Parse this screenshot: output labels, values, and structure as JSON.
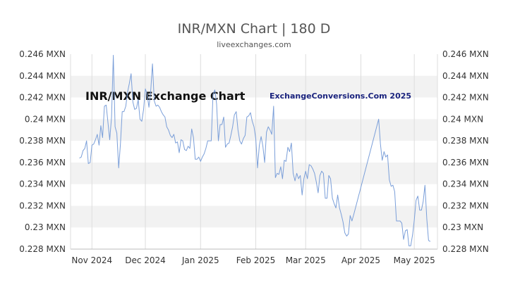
{
  "chart_data": {
    "type": "line",
    "title": "INR/MXN Chart | 180 D",
    "subtitle": "liveexchanges.com",
    "watermark_left": "INR/MXN Exchange Chart",
    "watermark_right": "ExchangeConversions.Com 2025",
    "xlabel": "",
    "ylabel": "",
    "ylim": [
      0.228,
      0.246
    ],
    "y_ticks": [
      {
        "value": 0.228,
        "label": "0.228 MXN"
      },
      {
        "value": 0.23,
        "label": "0.23 MXN"
      },
      {
        "value": 0.232,
        "label": "0.232 MXN"
      },
      {
        "value": 0.234,
        "label": "0.234 MXN"
      },
      {
        "value": 0.236,
        "label": "0.236 MXN"
      },
      {
        "value": 0.238,
        "label": "0.238 MXN"
      },
      {
        "value": 0.24,
        "label": "0.24 MXN"
      },
      {
        "value": 0.242,
        "label": "0.242 MXN"
      },
      {
        "value": 0.244,
        "label": "0.244 MXN"
      },
      {
        "value": 0.246,
        "label": "0.246 MXN"
      }
    ],
    "xlim": [
      "2024-10-20",
      "2025-05-14"
    ],
    "x_ticks": [
      {
        "date": "2024-11-01",
        "label": "Nov 2024"
      },
      {
        "date": "2024-12-01",
        "label": "Dec 2024"
      },
      {
        "date": "2025-01-01",
        "label": "Jan 2025"
      },
      {
        "date": "2025-02-01",
        "label": "Feb 2025"
      },
      {
        "date": "2025-03-01",
        "label": "Mar 2025"
      },
      {
        "date": "2025-04-01",
        "label": "Apr 2025"
      },
      {
        "date": "2025-05-01",
        "label": "May 2025"
      }
    ],
    "grid": "alternating-horizontal-bands",
    "line_color": "#7b9fd9",
    "band_color": "#f2f2f2",
    "series": [
      {
        "name": "",
        "points": [
          [
            "2024-10-25",
            0.2364
          ],
          [
            "2024-10-26",
            0.2365
          ],
          [
            "2024-10-27",
            0.2371
          ],
          [
            "2024-10-28",
            0.2373
          ],
          [
            "2024-10-29",
            0.238
          ],
          [
            "2024-10-30",
            0.2359
          ],
          [
            "2024-10-31",
            0.236
          ],
          [
            "2024-11-01",
            0.2376
          ],
          [
            "2024-11-02",
            0.2377
          ],
          [
            "2024-11-03",
            0.2381
          ],
          [
            "2024-11-04",
            0.2386
          ],
          [
            "2024-11-05",
            0.2376
          ],
          [
            "2024-11-06",
            0.2394
          ],
          [
            "2024-11-07",
            0.2383
          ],
          [
            "2024-11-08",
            0.2412
          ],
          [
            "2024-11-09",
            0.2413
          ],
          [
            "2024-11-10",
            0.2397
          ],
          [
            "2024-11-11",
            0.2381
          ],
          [
            "2024-11-12",
            0.2402
          ],
          [
            "2024-11-13",
            0.2459
          ],
          [
            "2024-11-14",
            0.2393
          ],
          [
            "2024-11-15",
            0.2387
          ],
          [
            "2024-11-16",
            0.2355
          ],
          [
            "2024-11-17",
            0.2377
          ],
          [
            "2024-11-18",
            0.2407
          ],
          [
            "2024-11-19",
            0.2407
          ],
          [
            "2024-11-20",
            0.2412
          ],
          [
            "2024-11-21",
            0.2425
          ],
          [
            "2024-11-22",
            0.2433
          ],
          [
            "2024-11-23",
            0.2442
          ],
          [
            "2024-11-24",
            0.2416
          ],
          [
            "2024-11-25",
            0.2409
          ],
          [
            "2024-11-26",
            0.241
          ],
          [
            "2024-11-27",
            0.2418
          ],
          [
            "2024-11-28",
            0.24
          ],
          [
            "2024-11-29",
            0.2398
          ],
          [
            "2024-11-30",
            0.2409
          ],
          [
            "2024-12-01",
            0.2428
          ],
          [
            "2024-12-02",
            0.2423
          ],
          [
            "2024-12-03",
            0.2411
          ],
          [
            "2024-12-04",
            0.2426
          ],
          [
            "2024-12-05",
            0.2451
          ],
          [
            "2024-12-06",
            0.2417
          ],
          [
            "2024-12-07",
            0.2412
          ],
          [
            "2024-12-08",
            0.2413
          ],
          [
            "2024-12-09",
            0.2411
          ],
          [
            "2024-12-10",
            0.2407
          ],
          [
            "2024-12-11",
            0.2404
          ],
          [
            "2024-12-12",
            0.2402
          ],
          [
            "2024-12-13",
            0.2393
          ],
          [
            "2024-12-14",
            0.239
          ],
          [
            "2024-12-15",
            0.2385
          ],
          [
            "2024-12-16",
            0.2383
          ],
          [
            "2024-12-17",
            0.2386
          ],
          [
            "2024-12-18",
            0.2378
          ],
          [
            "2024-12-19",
            0.2379
          ],
          [
            "2024-12-20",
            0.2369
          ],
          [
            "2024-12-21",
            0.2381
          ],
          [
            "2024-12-22",
            0.238
          ],
          [
            "2024-12-23",
            0.2372
          ],
          [
            "2024-12-24",
            0.2371
          ],
          [
            "2024-12-25",
            0.2375
          ],
          [
            "2024-12-26",
            0.2373
          ],
          [
            "2024-12-27",
            0.2391
          ],
          [
            "2024-12-28",
            0.2383
          ],
          [
            "2024-12-29",
            0.2363
          ],
          [
            "2024-12-30",
            0.2363
          ],
          [
            "2024-12-31",
            0.2365
          ],
          [
            "2025-01-01",
            0.2361
          ],
          [
            "2025-01-02",
            0.2365
          ],
          [
            "2025-01-03",
            0.2368
          ],
          [
            "2025-01-04",
            0.2373
          ],
          [
            "2025-01-05",
            0.238
          ],
          [
            "2025-01-06",
            0.238
          ],
          [
            "2025-01-07",
            0.238
          ],
          [
            "2025-01-08",
            0.2423
          ],
          [
            "2025-01-09",
            0.2427
          ],
          [
            "2025-01-10",
            0.2414
          ],
          [
            "2025-01-11",
            0.238
          ],
          [
            "2025-01-12",
            0.2395
          ],
          [
            "2025-01-13",
            0.2395
          ],
          [
            "2025-01-14",
            0.2402
          ],
          [
            "2025-01-15",
            0.2374
          ],
          [
            "2025-01-16",
            0.2377
          ],
          [
            "2025-01-17",
            0.2378
          ],
          [
            "2025-01-18",
            0.2385
          ],
          [
            "2025-01-19",
            0.2393
          ],
          [
            "2025-01-20",
            0.2404
          ],
          [
            "2025-01-21",
            0.2407
          ],
          [
            "2025-01-22",
            0.239
          ],
          [
            "2025-01-23",
            0.238
          ],
          [
            "2025-01-24",
            0.2377
          ],
          [
            "2025-01-25",
            0.2382
          ],
          [
            "2025-01-26",
            0.2385
          ],
          [
            "2025-01-27",
            0.2402
          ],
          [
            "2025-01-28",
            0.2403
          ],
          [
            "2025-01-29",
            0.2406
          ],
          [
            "2025-01-30",
            0.2398
          ],
          [
            "2025-01-31",
            0.2393
          ],
          [
            "2025-02-01",
            0.2382
          ],
          [
            "2025-02-02",
            0.2355
          ],
          [
            "2025-02-03",
            0.2376
          ],
          [
            "2025-02-04",
            0.2384
          ],
          [
            "2025-02-05",
            0.2375
          ],
          [
            "2025-02-06",
            0.236
          ],
          [
            "2025-02-07",
            0.2388
          ],
          [
            "2025-02-08",
            0.2393
          ],
          [
            "2025-02-09",
            0.239
          ],
          [
            "2025-02-10",
            0.2386
          ],
          [
            "2025-02-11",
            0.2412
          ],
          [
            "2025-02-12",
            0.2346
          ],
          [
            "2025-02-13",
            0.235
          ],
          [
            "2025-02-14",
            0.2349
          ],
          [
            "2025-02-15",
            0.2356
          ],
          [
            "2025-02-16",
            0.2345
          ],
          [
            "2025-02-17",
            0.2362
          ],
          [
            "2025-02-18",
            0.2361
          ],
          [
            "2025-02-19",
            0.2374
          ],
          [
            "2025-02-20",
            0.237
          ],
          [
            "2025-02-21",
            0.2378
          ],
          [
            "2025-02-22",
            0.235
          ],
          [
            "2025-02-23",
            0.2343
          ],
          [
            "2025-02-24",
            0.235
          ],
          [
            "2025-02-25",
            0.2345
          ],
          [
            "2025-02-26",
            0.2348
          ],
          [
            "2025-02-27",
            0.233
          ],
          [
            "2025-02-28",
            0.2345
          ],
          [
            "2025-03-01",
            0.2352
          ],
          [
            "2025-03-02",
            0.2345
          ],
          [
            "2025-03-03",
            0.2358
          ],
          [
            "2025-03-04",
            0.2357
          ],
          [
            "2025-03-05",
            0.2354
          ],
          [
            "2025-03-06",
            0.235
          ],
          [
            "2025-03-07",
            0.2342
          ],
          [
            "2025-03-08",
            0.2332
          ],
          [
            "2025-03-09",
            0.2348
          ],
          [
            "2025-03-10",
            0.2352
          ],
          [
            "2025-03-11",
            0.235
          ],
          [
            "2025-03-12",
            0.2327
          ],
          [
            "2025-03-13",
            0.2327
          ],
          [
            "2025-03-14",
            0.2348
          ],
          [
            "2025-03-15",
            0.2345
          ],
          [
            "2025-03-16",
            0.2327
          ],
          [
            "2025-03-17",
            0.2322
          ],
          [
            "2025-03-18",
            0.2318
          ],
          [
            "2025-03-19",
            0.233
          ],
          [
            "2025-03-20",
            0.2318
          ],
          [
            "2025-03-21",
            0.2312
          ],
          [
            "2025-03-22",
            0.2305
          ],
          [
            "2025-03-23",
            0.2295
          ],
          [
            "2025-03-24",
            0.2292
          ],
          [
            "2025-03-25",
            0.2294
          ],
          [
            "2025-03-26",
            0.2311
          ],
          [
            "2025-03-27",
            0.2306
          ],
          [
            "2025-03-28",
            0.2312
          ],
          [
            "2025-04-11",
            0.24
          ],
          [
            "2025-04-12",
            0.2377
          ],
          [
            "2025-04-13",
            0.2362
          ],
          [
            "2025-04-14",
            0.237
          ],
          [
            "2025-04-15",
            0.2365
          ],
          [
            "2025-04-16",
            0.2367
          ],
          [
            "2025-04-17",
            0.2344
          ],
          [
            "2025-04-18",
            0.2338
          ],
          [
            "2025-04-19",
            0.2339
          ],
          [
            "2025-04-20",
            0.2333
          ],
          [
            "2025-04-21",
            0.2306
          ],
          [
            "2025-04-22",
            0.2306
          ],
          [
            "2025-04-23",
            0.2306
          ],
          [
            "2025-04-24",
            0.2304
          ],
          [
            "2025-04-25",
            0.2289
          ],
          [
            "2025-04-26",
            0.2297
          ],
          [
            "2025-04-27",
            0.2298
          ],
          [
            "2025-04-28",
            0.2283
          ],
          [
            "2025-04-29",
            0.2283
          ],
          [
            "2025-04-30",
            0.2293
          ],
          [
            "2025-05-01",
            0.2307
          ],
          [
            "2025-05-02",
            0.2325
          ],
          [
            "2025-05-03",
            0.2329
          ],
          [
            "2025-05-04",
            0.2316
          ],
          [
            "2025-05-05",
            0.2316
          ],
          [
            "2025-05-06",
            0.2324
          ],
          [
            "2025-05-07",
            0.2339
          ],
          [
            "2025-05-08",
            0.2308
          ],
          [
            "2025-05-09",
            0.2288
          ],
          [
            "2025-05-10",
            0.2287
          ]
        ]
      }
    ]
  }
}
